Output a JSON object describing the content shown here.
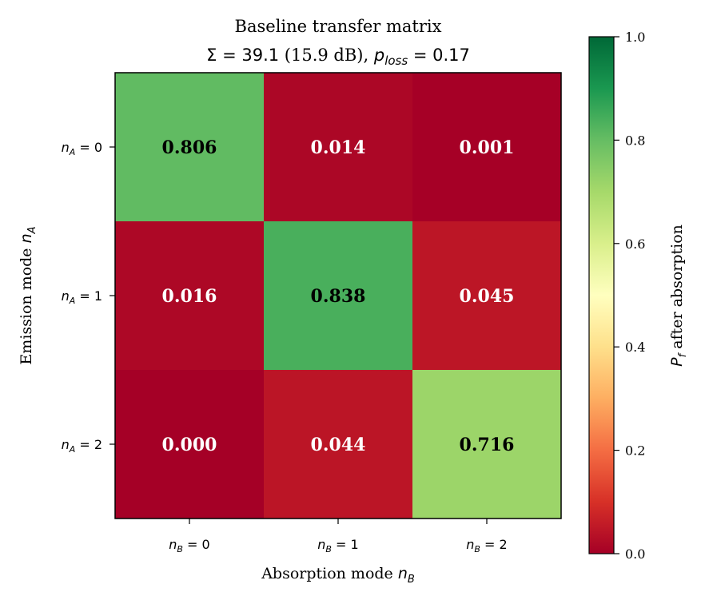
{
  "chart_data": {
    "type": "heatmap",
    "title_line1": "Baseline transfer matrix",
    "title_line2": {
      "sigma_symbol": "Σ",
      "equals": " = ",
      "sigma_value": "39.1",
      "db_text": " (15.9 dB), ",
      "p_symbol": "p",
      "p_subscript": "loss",
      "p_value": "0.17"
    },
    "xlabel": {
      "text": "Absorption mode ",
      "var": "n",
      "sub": "B"
    },
    "ylabel": {
      "text": "Emission mode ",
      "var": "n",
      "sub": "A"
    },
    "x_ticks": [
      {
        "var": "n",
        "sub": "B",
        "eq": " = 0"
      },
      {
        "var": "n",
        "sub": "B",
        "eq": " = 1"
      },
      {
        "var": "n",
        "sub": "B",
        "eq": " = 2"
      }
    ],
    "y_ticks": [
      {
        "var": "n",
        "sub": "A",
        "eq": " = 0"
      },
      {
        "var": "n",
        "sub": "A",
        "eq": " = 1"
      },
      {
        "var": "n",
        "sub": "A",
        "eq": " = 2"
      }
    ],
    "values": [
      [
        0.806,
        0.014,
        0.001
      ],
      [
        0.016,
        0.838,
        0.045
      ],
      [
        0.0,
        0.044,
        0.716
      ]
    ],
    "cell_labels": [
      [
        "0.806",
        "0.014",
        "0.001"
      ],
      [
        "0.016",
        "0.838",
        "0.045"
      ],
      [
        "0.000",
        "0.044",
        "0.716"
      ]
    ],
    "colormap": "RdYlGn",
    "vmin": 0.0,
    "vmax": 1.0,
    "colorbar": {
      "label_var": "P",
      "label_sub": "f",
      "label_text": " after absorption",
      "ticks": [
        0.0,
        0.2,
        0.4,
        0.6,
        0.8,
        1.0
      ],
      "tick_labels": [
        "0.0",
        "0.2",
        "0.4",
        "0.6",
        "0.8",
        "1.0"
      ]
    },
    "grid": false
  }
}
